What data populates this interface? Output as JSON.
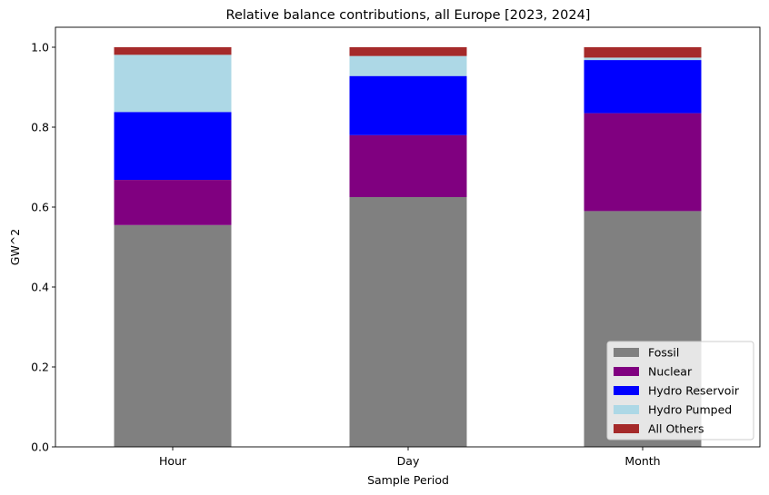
{
  "chart_data": {
    "type": "bar",
    "stacked": true,
    "title": "Relative balance contributions, all Europe [2023, 2024]",
    "xlabel": "Sample Period",
    "ylabel": "GW^2",
    "categories": [
      "Hour",
      "Day",
      "Month"
    ],
    "ylim": [
      0,
      1.05
    ],
    "yticks": [
      "0.0",
      "0.2",
      "0.4",
      "0.6",
      "0.8",
      "1.0"
    ],
    "legend_position": "lower-right",
    "grid": false,
    "series": [
      {
        "name": "Fossil",
        "color": "#808080",
        "values": [
          0.555,
          0.625,
          0.59
        ]
      },
      {
        "name": "Nuclear",
        "color": "#800080",
        "values": [
          0.113,
          0.155,
          0.245
        ]
      },
      {
        "name": "Hydro Reservoir",
        "color": "#0000ff",
        "values": [
          0.17,
          0.148,
          0.133
        ]
      },
      {
        "name": "Hydro Pumped",
        "color": "#add8e6",
        "values": [
          0.143,
          0.05,
          0.006
        ]
      },
      {
        "name": "All Others",
        "color": "#a52a2a",
        "values": [
          0.019,
          0.022,
          0.026
        ]
      }
    ]
  }
}
